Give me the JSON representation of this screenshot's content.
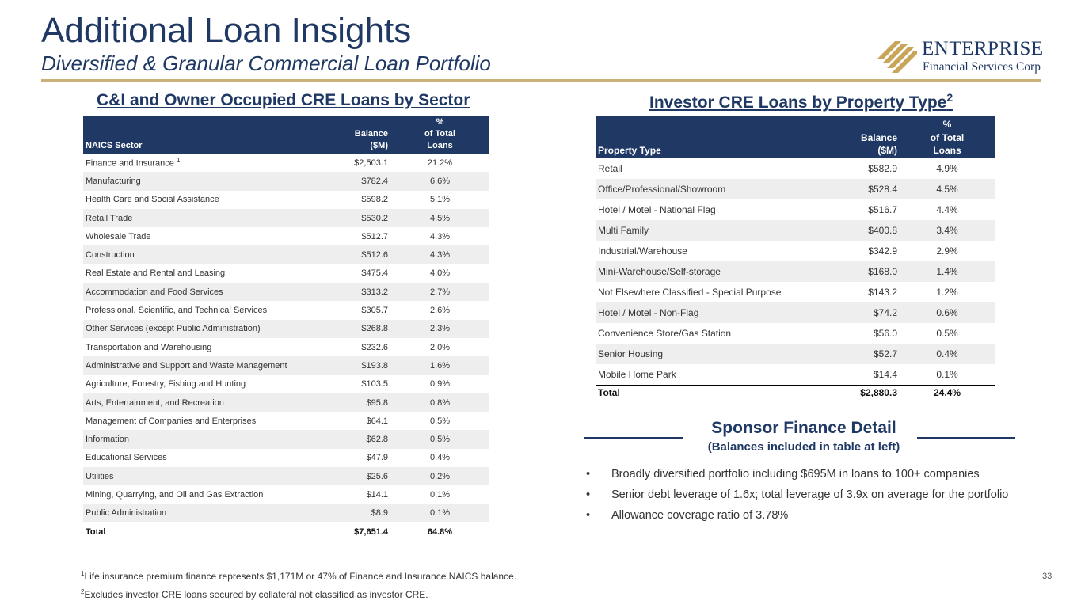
{
  "header": {
    "title": "Additional Loan Insights",
    "subtitle": "Diversified & Granular Commercial Loan Portfolio"
  },
  "logo": {
    "word1": "ENTERPRISE",
    "word2": "Financial Services Corp",
    "colors": {
      "mark": "#c9a55a",
      "text": "#1f3864"
    }
  },
  "left_section": {
    "title": "C&I and Owner Occupied CRE Loans by Sector",
    "columns": {
      "sector": "NAICS Sector",
      "balance_l1": "Balance",
      "balance_l2": "($M)",
      "pct_l1": "%",
      "pct_l2": "of Total",
      "pct_l3": "Loans"
    },
    "rows": [
      {
        "name": "Finance and Insurance",
        "footnote": "1",
        "balance": "$2,503.1",
        "pct": "21.2%"
      },
      {
        "name": "Manufacturing",
        "balance": "$782.4",
        "pct": "6.6%"
      },
      {
        "name": "Health Care and Social Assistance",
        "balance": "$598.2",
        "pct": "5.1%"
      },
      {
        "name": "Retail Trade",
        "balance": "$530.2",
        "pct": "4.5%"
      },
      {
        "name": "Wholesale Trade",
        "balance": "$512.7",
        "pct": "4.3%"
      },
      {
        "name": "Construction",
        "balance": "$512.6",
        "pct": "4.3%"
      },
      {
        "name": "Real Estate and Rental and Leasing",
        "balance": "$475.4",
        "pct": "4.0%"
      },
      {
        "name": "Accommodation and Food Services",
        "balance": "$313.2",
        "pct": "2.7%"
      },
      {
        "name": "Professional, Scientific, and Technical Services",
        "balance": "$305.7",
        "pct": "2.6%"
      },
      {
        "name": "Other Services (except Public Administration)",
        "balance": "$268.8",
        "pct": "2.3%"
      },
      {
        "name": "Transportation and Warehousing",
        "balance": "$232.6",
        "pct": "2.0%"
      },
      {
        "name": "Administrative and Support and Waste Management",
        "balance": "$193.8",
        "pct": "1.6%"
      },
      {
        "name": "Agriculture, Forestry, Fishing and Hunting",
        "balance": "$103.5",
        "pct": "0.9%"
      },
      {
        "name": "Arts, Entertainment, and Recreation",
        "balance": "$95.8",
        "pct": "0.8%"
      },
      {
        "name": "Management of Companies and Enterprises",
        "balance": "$64.1",
        "pct": "0.5%"
      },
      {
        "name": "Information",
        "balance": "$62.8",
        "pct": "0.5%"
      },
      {
        "name": "Educational Services",
        "balance": "$47.9",
        "pct": "0.4%"
      },
      {
        "name": "Utilities",
        "balance": "$25.6",
        "pct": "0.2%"
      },
      {
        "name": "Mining, Quarrying, and Oil and Gas Extraction",
        "balance": "$14.1",
        "pct": "0.1%"
      },
      {
        "name": "Public Administration",
        "balance": "$8.9",
        "pct": "0.1%"
      }
    ],
    "total": {
      "name": "Total",
      "balance": "$7,651.4",
      "pct": "64.8%"
    }
  },
  "right_section": {
    "title": "Investor CRE Loans by Property Type",
    "title_sup": "2",
    "columns": {
      "type": "Property Type",
      "balance_l1": "Balance",
      "balance_l2": "($M)",
      "pct_l1": "%",
      "pct_l2": "of Total",
      "pct_l3": "Loans"
    },
    "rows": [
      {
        "name": "Retail",
        "balance": "$582.9",
        "pct": "4.9%"
      },
      {
        "name": "Office/Professional/Showroom",
        "balance": "$528.4",
        "pct": "4.5%"
      },
      {
        "name": "Hotel / Motel - National Flag",
        "balance": "$516.7",
        "pct": "4.4%"
      },
      {
        "name": "Multi Family",
        "balance": "$400.8",
        "pct": "3.4%"
      },
      {
        "name": "Industrial/Warehouse",
        "balance": "$342.9",
        "pct": "2.9%"
      },
      {
        "name": "Mini-Warehouse/Self-storage",
        "balance": "$168.0",
        "pct": "1.4%"
      },
      {
        "name": "Not Elsewhere Classified - Special Purpose",
        "balance": "$143.2",
        "pct": "1.2%"
      },
      {
        "name": "Hotel / Motel - Non-Flag",
        "balance": "$74.2",
        "pct": "0.6%"
      },
      {
        "name": "Convenience Store/Gas Station",
        "balance": "$56.0",
        "pct": "0.5%"
      },
      {
        "name": "Senior Housing",
        "balance": "$52.7",
        "pct": "0.4%"
      },
      {
        "name": "Mobile Home Park",
        "balance": "$14.4",
        "pct": "0.1%"
      }
    ],
    "total": {
      "name": "Total",
      "balance": "$2,880.3",
      "pct": "24.4%"
    }
  },
  "sponsor": {
    "title": "Sponsor Finance Detail",
    "subtitle": "(Balances included in table at left)",
    "bullets": [
      "Broadly diversified portfolio including $695M in loans to 100+ companies",
      "Senior debt leverage of 1.6x; total leverage of 3.9x on average for the portfolio",
      "Allowance coverage ratio of 3.78%"
    ]
  },
  "footnotes": [
    {
      "mark": "1",
      "text": "Life insurance premium finance represents $1,171M or 47% of Finance and Insurance NAICS balance."
    },
    {
      "mark": "2",
      "text": "Excludes investor CRE loans secured by collateral not classified as investor CRE."
    }
  ],
  "page_number": "33"
}
